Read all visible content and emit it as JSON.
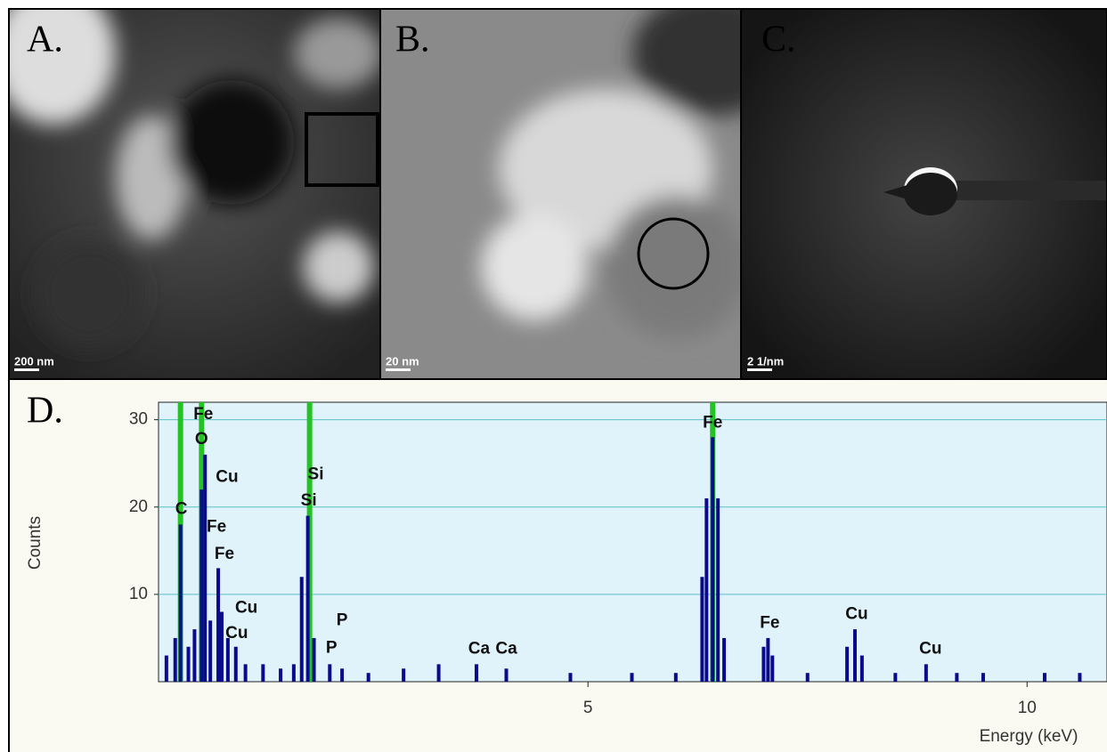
{
  "panels": [
    {
      "label": "A.",
      "scale_bar": "200 nm"
    },
    {
      "label": "B.",
      "scale_bar": "20 nm"
    },
    {
      "label": "C.",
      "scale_bar": "2 1/nm"
    }
  ],
  "chart_data": {
    "type": "spectrum",
    "label": "D.",
    "x_label": "Energy (keV)",
    "y_label": "Counts",
    "color": "#0a0a8c",
    "marker_color": "#22c322",
    "grid": true,
    "xlim": [
      0.11,
      10.91
    ],
    "ylim": [
      0,
      32
    ],
    "xticks": [
      5,
      10
    ],
    "yticks": [
      10,
      20,
      30
    ],
    "x": [
      0.2,
      0.3,
      0.36,
      0.45,
      0.52,
      0.6,
      0.64,
      0.7,
      0.79,
      0.83,
      0.9,
      0.99,
      1.1,
      1.3,
      1.5,
      1.65,
      1.74,
      1.81,
      1.88,
      2.06,
      2.2,
      2.5,
      2.9,
      3.3,
      3.73,
      4.07,
      4.8,
      5.5,
      6.0,
      6.3,
      6.35,
      6.42,
      6.48,
      6.55,
      7.0,
      7.05,
      7.1,
      7.5,
      7.95,
      8.04,
      8.12,
      8.5,
      8.85,
      9.2,
      9.5,
      10.2,
      10.6
    ],
    "values": [
      3,
      5,
      18,
      4,
      6,
      22,
      26,
      7,
      13,
      8,
      5,
      4,
      2,
      2,
      1.5,
      2,
      12,
      19,
      5,
      2,
      1.5,
      1,
      1.5,
      2,
      2,
      1.5,
      1,
      1,
      1,
      12,
      21,
      28,
      21,
      5,
      4,
      5,
      3,
      1,
      4,
      6,
      3,
      1,
      2,
      1,
      1,
      1,
      1
    ],
    "markers": [
      0.36,
      0.6,
      1.83,
      6.42
    ],
    "annotations": [
      {
        "text": "Fe",
        "x": 0.62,
        "y": 30.6
      },
      {
        "text": "O",
        "x": 0.6,
        "y": 27.7
      },
      {
        "text": "Cu",
        "x": 0.89,
        "y": 23.4
      },
      {
        "text": "Si",
        "x": 1.9,
        "y": 23.7
      },
      {
        "text": "Si",
        "x": 1.82,
        "y": 20.7
      },
      {
        "text": "C",
        "x": 0.37,
        "y": 19.7
      },
      {
        "text": "Fe",
        "x": 0.77,
        "y": 17.7
      },
      {
        "text": "Fe",
        "x": 0.86,
        "y": 14.6
      },
      {
        "text": "Cu",
        "x": 1.11,
        "y": 8.4
      },
      {
        "text": "Cu",
        "x": 1.0,
        "y": 5.5
      },
      {
        "text": "P",
        "x": 2.2,
        "y": 7.0
      },
      {
        "text": "P",
        "x": 2.08,
        "y": 3.8
      },
      {
        "text": "Ca",
        "x": 3.76,
        "y": 3.7
      },
      {
        "text": "Ca",
        "x": 4.07,
        "y": 3.7
      },
      {
        "text": "Fe",
        "x": 6.42,
        "y": 29.6
      },
      {
        "text": "Fe",
        "x": 7.07,
        "y": 6.7
      },
      {
        "text": "Cu",
        "x": 8.06,
        "y": 7.7
      },
      {
        "text": "Cu",
        "x": 8.9,
        "y": 3.7
      }
    ]
  }
}
